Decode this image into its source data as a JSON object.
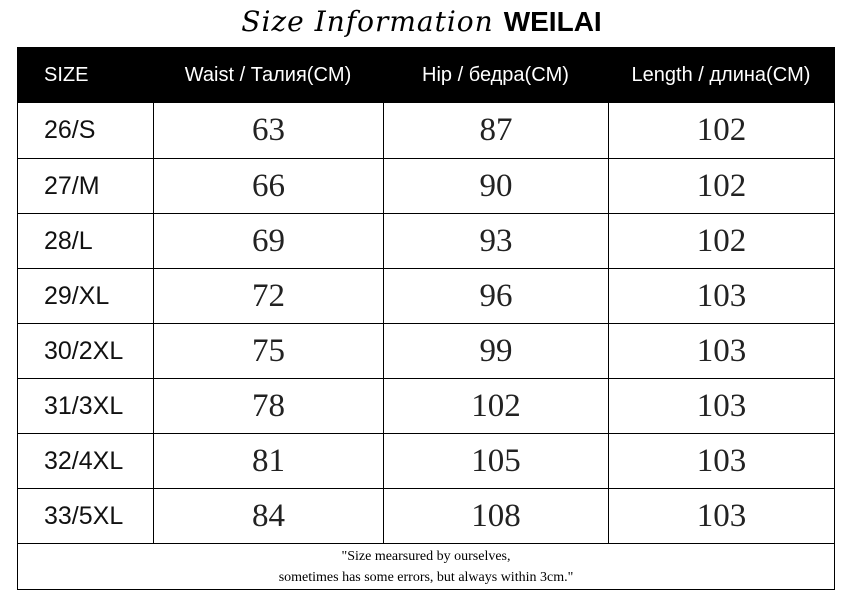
{
  "title": {
    "script": "Size Information",
    "brand": "WEILAI"
  },
  "table": {
    "header": [
      "SIZE",
      "Waist / Талия(CM)",
      "Hip / бедра(CM)",
      "Length / длина(CM)"
    ],
    "rows": [
      [
        "26/S",
        63,
        87,
        102
      ],
      [
        "27/M",
        66,
        90,
        102
      ],
      [
        "28/L",
        69,
        93,
        102
      ],
      [
        "29/XL",
        72,
        96,
        103
      ],
      [
        "30/2XL",
        75,
        99,
        103
      ],
      [
        "31/3XL",
        78,
        102,
        103
      ],
      [
        "32/4XL",
        81,
        105,
        103
      ],
      [
        "33/5XL",
        84,
        108,
        103
      ]
    ]
  },
  "footer": {
    "lines": [
      "\"Size mearsured by ourselves,",
      "sometimes has some errors, but always within 3cm.\""
    ]
  }
}
